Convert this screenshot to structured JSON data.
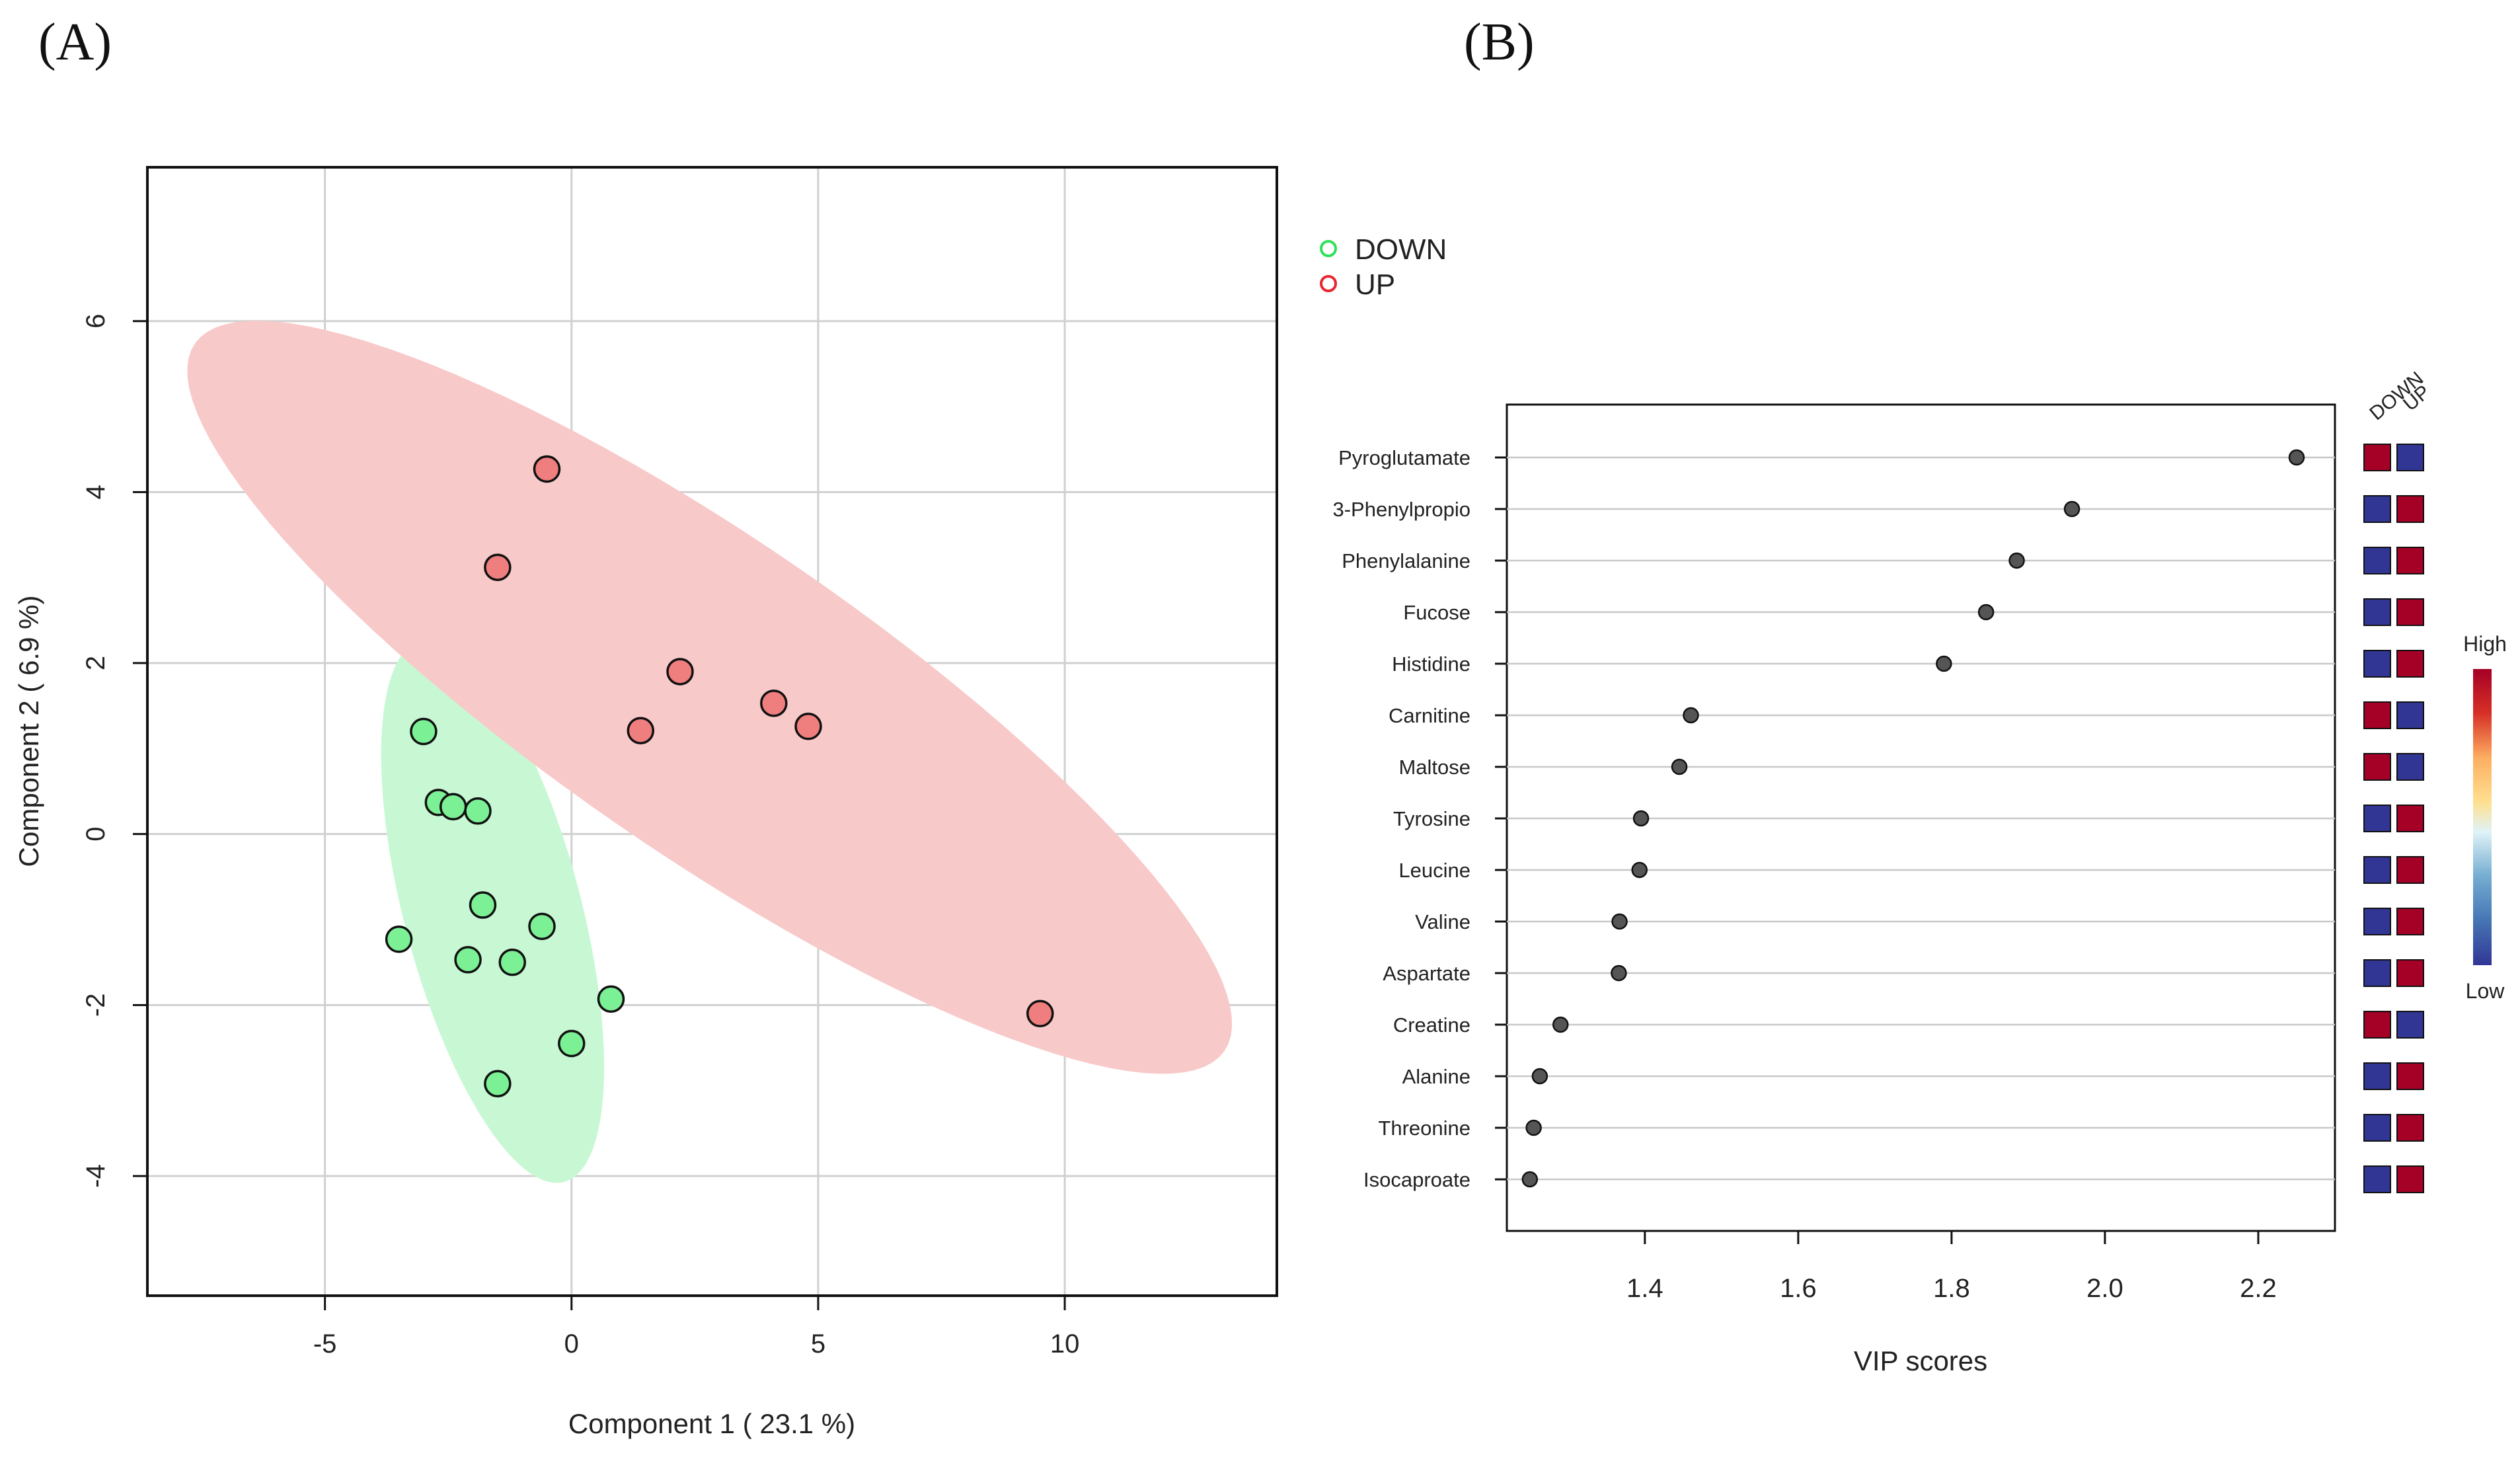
{
  "panels": {
    "a_label": "(A)",
    "b_label": "(B)"
  },
  "colors": {
    "down": "#2ee05a",
    "up": "#e8262f",
    "down_point": "#7cf095",
    "up_point": "#ef7e7e",
    "down_ellipse": "#c7f8d3",
    "up_ellipse": "#f8c9c9",
    "heat_high": "#a50026",
    "heat_low": "#313695",
    "dot": "#555555"
  },
  "chart_data": [
    {
      "type": "scatter",
      "title": "",
      "xlabel": "Component 1 ( 23.1 %)",
      "ylabel": "Component 2 ( 6.9 %)",
      "xlim": [
        -8.6,
        14.3
      ],
      "ylim": [
        -5.4,
        7.8
      ],
      "xticks": [
        -5,
        0,
        5,
        10
      ],
      "yticks": [
        -4,
        -2,
        0,
        2,
        4,
        6
      ],
      "grid": true,
      "legend": {
        "position": "top-right-outside",
        "items": [
          {
            "label": "DOWN",
            "key": "down"
          },
          {
            "label": "UP",
            "key": "up"
          }
        ]
      },
      "series": [
        {
          "name": "DOWN",
          "points": [
            [
              -3.0,
              1.2
            ],
            [
              -2.7,
              0.37
            ],
            [
              -2.4,
              0.32
            ],
            [
              -1.9,
              0.27
            ],
            [
              -1.8,
              -0.83
            ],
            [
              -0.6,
              -1.08
            ],
            [
              -3.5,
              -1.23
            ],
            [
              -2.1,
              -1.47
            ],
            [
              -1.2,
              -1.5
            ],
            [
              0.8,
              -1.93
            ],
            [
              0.0,
              -2.45
            ],
            [
              -1.5,
              -2.92
            ]
          ],
          "ellipse": {
            "center": [
              -1.6,
              -0.9
            ],
            "rx": 5.6,
            "ry": 2.65,
            "angle_deg": -72
          }
        },
        {
          "name": "UP",
          "points": [
            [
              -0.5,
              4.27
            ],
            [
              -1.5,
              3.12
            ],
            [
              2.2,
              1.9
            ],
            [
              1.4,
              1.21
            ],
            [
              4.1,
              1.53
            ],
            [
              4.8,
              1.26
            ],
            [
              9.5,
              -2.1
            ]
          ],
          "ellipse": {
            "center": [
              2.8,
              1.6
            ],
            "rx": 12.6,
            "ry": 2.3,
            "angle_deg": -33
          }
        }
      ]
    },
    {
      "type": "dot",
      "title": "",
      "xlabel": "VIP scores",
      "xlim": [
        1.22,
        2.3
      ],
      "xticks": [
        1.4,
        1.6,
        1.8,
        2.0,
        2.2
      ],
      "heatmap_columns": [
        "DOWN",
        "UP"
      ],
      "colorbar": {
        "high_label": "High",
        "low_label": "Low"
      },
      "rows": [
        {
          "label": "Pyroglutamate",
          "vip": 2.25,
          "down": "high",
          "up": "low"
        },
        {
          "label": "3-Phenylpropio",
          "vip": 1.957,
          "down": "low",
          "up": "high"
        },
        {
          "label": "Phenylalanine",
          "vip": 1.885,
          "down": "low",
          "up": "high"
        },
        {
          "label": "Fucose",
          "vip": 1.845,
          "down": "low",
          "up": "high"
        },
        {
          "label": "Histidine",
          "vip": 1.79,
          "down": "low",
          "up": "high"
        },
        {
          "label": "Carnitine",
          "vip": 1.46,
          "down": "high",
          "up": "low"
        },
        {
          "label": "Maltose",
          "vip": 1.445,
          "down": "high",
          "up": "low"
        },
        {
          "label": "Tyrosine",
          "vip": 1.395,
          "down": "low",
          "up": "high"
        },
        {
          "label": "Leucine",
          "vip": 1.393,
          "down": "low",
          "up": "high"
        },
        {
          "label": "Valine",
          "vip": 1.367,
          "down": "low",
          "up": "high"
        },
        {
          "label": "Aspartate",
          "vip": 1.366,
          "down": "low",
          "up": "high"
        },
        {
          "label": "Creatine",
          "vip": 1.29,
          "down": "high",
          "up": "low"
        },
        {
          "label": "Alanine",
          "vip": 1.263,
          "down": "low",
          "up": "high"
        },
        {
          "label": "Threonine",
          "vip": 1.255,
          "down": "low",
          "up": "high"
        },
        {
          "label": "Isocaproate",
          "vip": 1.25,
          "down": "low",
          "up": "high"
        }
      ]
    }
  ]
}
